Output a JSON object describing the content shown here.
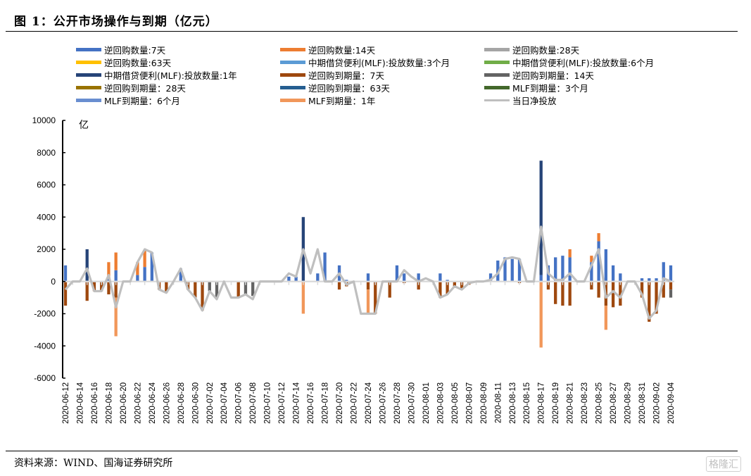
{
  "header": {
    "title": "图  1：公开市场操作与到期（亿元）"
  },
  "footer": {
    "source": "资料来源：WIND、国海证券研究所",
    "watermark": "格隆汇"
  },
  "chart_data": {
    "type": "bar",
    "stacked": true,
    "title": "公开市场操作与到期（亿元）",
    "ylabel": "亿",
    "xlabel": "",
    "ylim": [
      -6000,
      10000
    ],
    "yticks": [
      10000,
      8000,
      6000,
      4000,
      2000,
      0,
      -2000,
      -4000,
      -6000
    ],
    "grid": false,
    "legend_position": "top",
    "x_tick_labels": [
      "2020-06-12",
      "2020-06-14",
      "2020-06-16",
      "2020-06-18",
      "2020-06-20",
      "2020-06-22",
      "2020-06-24",
      "2020-06-26",
      "2020-06-28",
      "2020-06-30",
      "2020-07-02",
      "2020-07-04",
      "2020-07-06",
      "2020-07-08",
      "2020-07-10",
      "2020-07-12",
      "2020-07-14",
      "2020-07-16",
      "2020-07-18",
      "2020-07-20",
      "2020-07-22",
      "2020-07-24",
      "2020-07-26",
      "2020-07-28",
      "2020-07-30",
      "2020-08-01",
      "2020-08-03",
      "2020-08-05",
      "2020-08-07",
      "2020-08-09",
      "2020-08-11",
      "2020-08-13",
      "2020-08-15",
      "2020-08-17",
      "2020-08-19",
      "2020-08-21",
      "2020-08-23",
      "2020-08-25",
      "2020-08-27",
      "2020-08-29",
      "2020-08-31",
      "2020-09-02",
      "2020-09-04"
    ],
    "x_start": "2020-06-12",
    "x_end": "2020-09-04",
    "series": [
      {
        "name": "逆回购数量:7天",
        "color": "#4472C4",
        "kind": "bar",
        "points": {
          "2020-06-12": 1000,
          "2020-06-18": 200,
          "2020-06-19": 700,
          "2020-06-22": 400,
          "2020-06-23": 900,
          "2020-06-24": 1800,
          "2020-06-28": 800,
          "2020-07-13": 300,
          "2020-07-14": 300,
          "2020-07-17": 500,
          "2020-07-18": 1800,
          "2020-07-20": 1000,
          "2020-07-21": 100,
          "2020-07-24": 500,
          "2020-07-28": 1000,
          "2020-07-29": 500,
          "2020-07-31": 500,
          "2020-08-03": 500,
          "2020-08-04": 100,
          "2020-08-17": 400,
          "2020-08-18": 1000,
          "2020-08-19": 1500,
          "2020-08-20": 1600,
          "2020-08-21": 1500,
          "2020-08-24": 1200,
          "2020-08-25": 2500,
          "2020-08-26": 2000,
          "2020-08-27": 1000,
          "2020-08-28": 500,
          "2020-08-31": 200,
          "2020-09-01": 200,
          "2020-09-02": 200,
          "2020-09-03": 1200,
          "2020-09-04": 1000,
          "2020-08-10": 500,
          "2020-08-11": 1300,
          "2020-08-12": 1500,
          "2020-08-13": 1400,
          "2020-08-14": 1400
        }
      },
      {
        "name": "逆回购数量:14天",
        "color": "#ED7D31",
        "kind": "bar",
        "points": {
          "2020-06-18": 1000,
          "2020-06-19": 1100,
          "2020-06-22": 800,
          "2020-06-23": 1000,
          "2020-08-21": 500,
          "2020-08-24": 400,
          "2020-08-25": 500
        }
      },
      {
        "name": "逆回购数量:28天",
        "color": "#A5A5A5",
        "kind": "bar",
        "points": {}
      },
      {
        "name": "逆回购数量:63天",
        "color": "#FFC000",
        "kind": "bar",
        "points": {}
      },
      {
        "name": "中期借贷便利(MLF):投放数量:3个月",
        "color": "#5B9BD5",
        "kind": "bar",
        "points": {}
      },
      {
        "name": "中期借贷便利(MLF):投放数量:6个月",
        "color": "#70AD47",
        "kind": "bar",
        "points": {}
      },
      {
        "name": "中期借贷便利(MLF):投放数量:1年",
        "color": "#264478",
        "kind": "bar",
        "points": {
          "2020-06-15": 2000,
          "2020-07-15": 4000,
          "2020-08-17": 7100
        }
      },
      {
        "name": "逆回购到期量：7天",
        "color": "#9E480E",
        "kind": "bar",
        "points": {
          "2020-06-12": -1500,
          "2020-06-15": -1200,
          "2020-06-16": -600,
          "2020-06-17": -600,
          "2020-06-18": -800,
          "2020-06-19": -1000,
          "2020-06-25": -500,
          "2020-06-26": -700,
          "2020-06-29": -500,
          "2020-06-30": -1000,
          "2020-07-01": -1800,
          "2020-07-06": -1000,
          "2020-07-20": -500,
          "2020-07-21": -300,
          "2020-07-24": -500,
          "2020-07-25": -2000,
          "2020-07-27": -1000,
          "2020-07-29": -100,
          "2020-07-31": -500,
          "2020-08-03": -1000,
          "2020-08-04": -800,
          "2020-08-05": -400,
          "2020-08-06": -500,
          "2020-08-07": -200,
          "2020-08-14": -100,
          "2020-08-18": -500,
          "2020-08-19": -1400,
          "2020-08-20": -1500,
          "2020-08-21": -1500,
          "2020-08-24": -500,
          "2020-08-25": -1000,
          "2020-08-26": -1500,
          "2020-08-27": -1600,
          "2020-08-28": -1500,
          "2020-08-31": -1000,
          "2020-09-01": -2500,
          "2020-09-02": -2000,
          "2020-09-03": -1000,
          "2020-09-04": -500
        }
      },
      {
        "name": "逆回购到期量：14天",
        "color": "#636363",
        "kind": "bar",
        "points": {
          "2020-07-02": -600,
          "2020-07-03": -1000,
          "2020-07-07": -800,
          "2020-07-08": -900,
          "2020-09-04": -500
        }
      },
      {
        "name": "逆回购到期量：28天",
        "color": "#997300",
        "kind": "bar",
        "points": {}
      },
      {
        "name": "逆回购到期量：63天",
        "color": "#255E91",
        "kind": "bar",
        "points": {}
      },
      {
        "name": "MLF到期量：3个月",
        "color": "#43682B",
        "kind": "bar",
        "points": {}
      },
      {
        "name": "MLF到期量：6个月",
        "color": "#698ED0",
        "kind": "bar",
        "points": {}
      },
      {
        "name": "MLF到期量：1年",
        "color": "#F1975A",
        "kind": "bar",
        "points": {
          "2020-06-19": -2400,
          "2020-07-15": -2000,
          "2020-07-24": -1500,
          "2020-08-17": -4100,
          "2020-08-26": -1500
        }
      },
      {
        "name": "当日净投放",
        "color": "#BFBFBF",
        "kind": "line",
        "points": {
          "2020-06-12": -500,
          "2020-06-13": 0,
          "2020-06-14": 0,
          "2020-06-15": 800,
          "2020-06-16": -600,
          "2020-06-17": -600,
          "2020-06-18": 400,
          "2020-06-19": -1600,
          "2020-06-20": 0,
          "2020-06-21": 0,
          "2020-06-22": 1200,
          "2020-06-23": 2000,
          "2020-06-24": 1800,
          "2020-06-25": -500,
          "2020-06-26": -700,
          "2020-06-27": 0,
          "2020-06-28": 800,
          "2020-06-29": -500,
          "2020-06-30": -1000,
          "2020-07-01": -1800,
          "2020-07-02": -600,
          "2020-07-03": -1100,
          "2020-07-04": 0,
          "2020-07-05": -1000,
          "2020-07-06": -1000,
          "2020-07-07": -800,
          "2020-07-08": -1100,
          "2020-07-09": 0,
          "2020-07-10": 0,
          "2020-07-11": 0,
          "2020-07-12": 0,
          "2020-07-13": 500,
          "2020-07-14": 300,
          "2020-07-15": 2000,
          "2020-07-16": 500,
          "2020-07-17": 2000,
          "2020-07-18": 0,
          "2020-07-19": 0,
          "2020-07-20": 500,
          "2020-07-21": -200,
          "2020-07-22": 0,
          "2020-07-23": -2000,
          "2020-07-24": -2000,
          "2020-07-25": -2000,
          "2020-07-26": 0,
          "2020-07-27": 0,
          "2020-07-28": 0,
          "2020-07-29": 700,
          "2020-07-30": 300,
          "2020-07-31": 0,
          "2020-08-01": 200,
          "2020-08-02": 0,
          "2020-08-03": -1000,
          "2020-08-04": -800,
          "2020-08-05": -300,
          "2020-08-06": -500,
          "2020-08-07": -100,
          "2020-08-08": 0,
          "2020-08-09": 0,
          "2020-08-10": 100,
          "2020-08-11": 500,
          "2020-08-12": 1400,
          "2020-08-13": 1500,
          "2020-08-14": 1400,
          "2020-08-15": 0,
          "2020-08-16": 0,
          "2020-08-17": 3400,
          "2020-08-18": 500,
          "2020-08-19": 100,
          "2020-08-20": 100,
          "2020-08-21": 500,
          "2020-08-22": 0,
          "2020-08-23": 0,
          "2020-08-24": 1000,
          "2020-08-25": 2000,
          "2020-08-26": -1000,
          "2020-08-27": -600,
          "2020-08-28": -1000,
          "2020-08-29": 0,
          "2020-08-30": 0,
          "2020-08-31": -800,
          "2020-09-01": -2300,
          "2020-09-02": -1800,
          "2020-09-03": 200,
          "2020-09-04": 0
        }
      }
    ]
  }
}
